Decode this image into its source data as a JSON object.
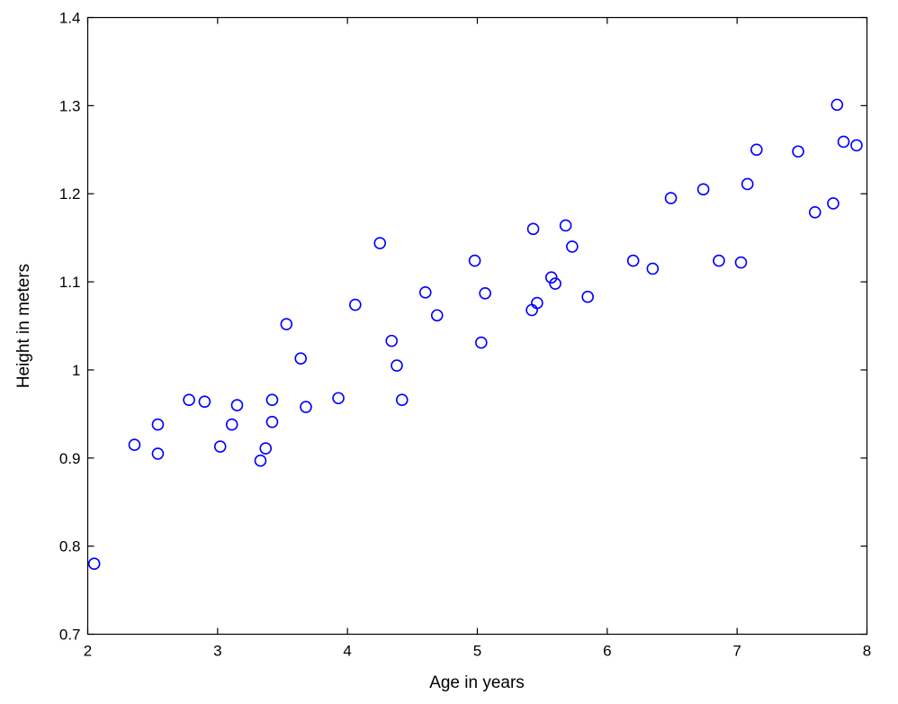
{
  "chart_data": {
    "type": "scatter",
    "title": "",
    "xlabel": "Age in years",
    "ylabel": "Height in meters",
    "xlim": [
      2,
      8
    ],
    "ylim": [
      0.7,
      1.4
    ],
    "x_ticks": [
      "2",
      "3",
      "4",
      "5",
      "6",
      "7",
      "8"
    ],
    "y_ticks": [
      "0.7",
      "0.8",
      "0.9",
      "1",
      "1.1",
      "1.2",
      "1.3",
      "1.4"
    ],
    "grid": false,
    "marker": "open-circle",
    "marker_color": "#0000ff",
    "series": [
      {
        "points": [
          [
            2.05,
            0.78
          ],
          [
            2.36,
            0.915
          ],
          [
            2.54,
            0.938
          ],
          [
            2.54,
            0.905
          ],
          [
            2.78,
            0.966
          ],
          [
            2.9,
            0.964
          ],
          [
            3.02,
            0.913
          ],
          [
            3.11,
            0.938
          ],
          [
            3.15,
            0.96
          ],
          [
            3.33,
            0.897
          ],
          [
            3.37,
            0.911
          ],
          [
            3.42,
            0.966
          ],
          [
            3.42,
            0.941
          ],
          [
            3.53,
            1.052
          ],
          [
            3.64,
            1.013
          ],
          [
            3.68,
            0.958
          ],
          [
            3.93,
            0.968
          ],
          [
            4.06,
            1.074
          ],
          [
            4.25,
            1.144
          ],
          [
            4.34,
            1.033
          ],
          [
            4.38,
            1.005
          ],
          [
            4.42,
            0.966
          ],
          [
            4.6,
            1.088
          ],
          [
            4.69,
            1.062
          ],
          [
            4.98,
            1.124
          ],
          [
            5.03,
            1.031
          ],
          [
            5.06,
            1.087
          ],
          [
            5.42,
            1.068
          ],
          [
            5.43,
            1.16
          ],
          [
            5.46,
            1.076
          ],
          [
            5.57,
            1.105
          ],
          [
            5.6,
            1.098
          ],
          [
            5.68,
            1.164
          ],
          [
            5.73,
            1.14
          ],
          [
            5.85,
            1.083
          ],
          [
            6.2,
            1.124
          ],
          [
            6.35,
            1.115
          ],
          [
            6.49,
            1.195
          ],
          [
            6.74,
            1.205
          ],
          [
            6.86,
            1.124
          ],
          [
            7.03,
            1.122
          ],
          [
            7.08,
            1.211
          ],
          [
            7.15,
            1.25
          ],
          [
            7.47,
            1.248
          ],
          [
            7.6,
            1.179
          ],
          [
            7.74,
            1.189
          ],
          [
            7.77,
            1.301
          ],
          [
            7.82,
            1.259
          ],
          [
            7.92,
            1.255
          ]
        ]
      }
    ]
  }
}
